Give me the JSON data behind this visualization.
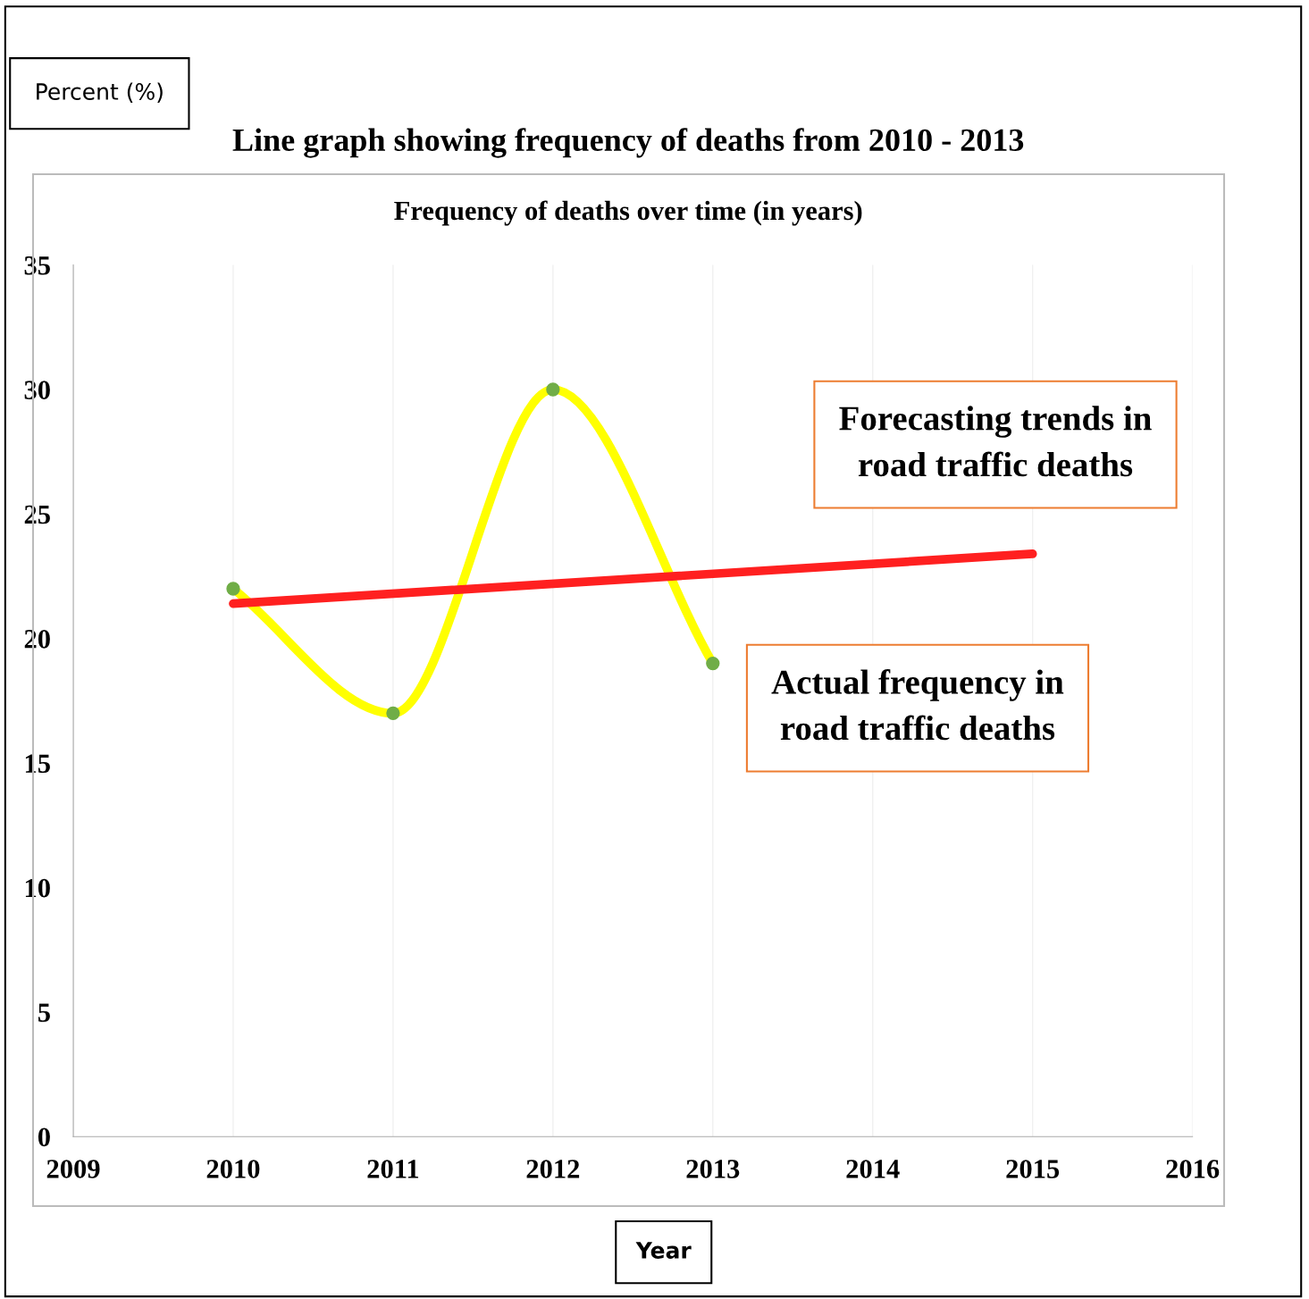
{
  "chart_data": {
    "type": "line",
    "title": "Line graph showing frequency of deaths from 2010 - 2013",
    "subtitle": "Frequency of deaths over time (in years)",
    "xlabel": "Year",
    "annotations": [
      "Percent (%)"
    ],
    "xlim": [
      2009,
      2016
    ],
    "xticks": [
      2009,
      2010,
      2011,
      2012,
      2013,
      2014,
      2015,
      2016
    ],
    "ylim": [
      0,
      35
    ],
    "yticks": [
      0,
      5,
      10,
      15,
      20,
      25,
      30,
      35
    ],
    "grid": "x",
    "series": [
      {
        "name": "Actual frequency in road traffic deaths",
        "color": "#ffff00",
        "x": [
          2010,
          2011,
          2012,
          2013
        ],
        "values": [
          22,
          17,
          30,
          19
        ],
        "marker": "circle"
      },
      {
        "name": "Forecasting trends in road traffic deaths",
        "color": "#ff2020",
        "x": [
          2010,
          2015
        ],
        "values": [
          21.4,
          23.4
        ],
        "marker": "none"
      }
    ]
  }
}
